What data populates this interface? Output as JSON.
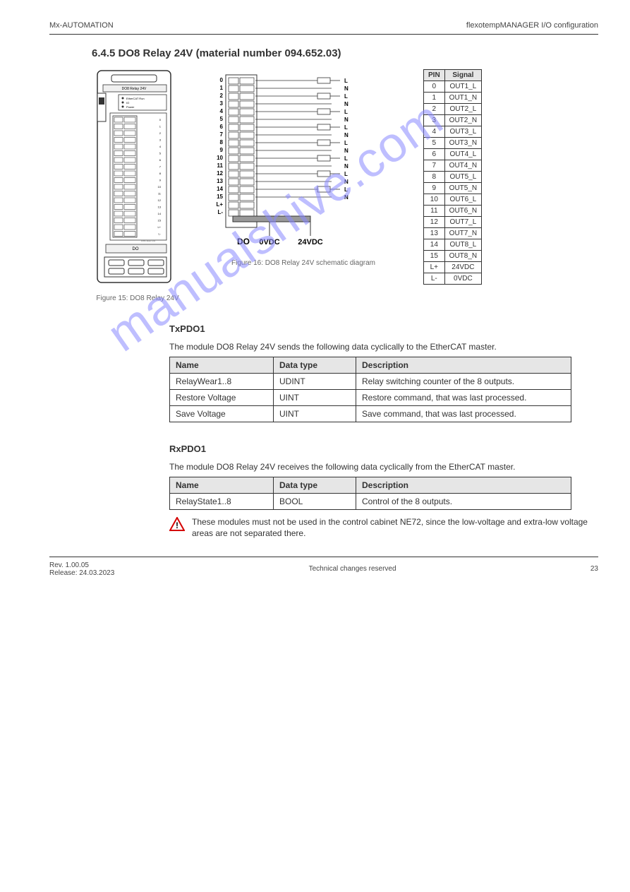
{
  "header": {
    "doc": "Mx-AUTOMATION",
    "section": "flexotempMANAGER I/O configuration"
  },
  "title": "6.4.5 DO8 Relay 24V (material number 094.652.03)",
  "figure_caption": "Figure 15: DO8 Relay 24V",
  "diagram_caption": "Figure 16: DO8 Relay 24V schematic diagram",
  "pin_table": {
    "headers": [
      "PIN",
      "Signal"
    ],
    "rows": [
      [
        "0",
        "OUT1_L"
      ],
      [
        "1",
        "OUT1_N"
      ],
      [
        "2",
        "OUT2_L"
      ],
      [
        "3",
        "OUT2_N"
      ],
      [
        "4",
        "OUT3_L"
      ],
      [
        "5",
        "OUT3_N"
      ],
      [
        "6",
        "OUT4_L"
      ],
      [
        "7",
        "OUT4_N"
      ],
      [
        "8",
        "OUT5_L"
      ],
      [
        "9",
        "OUT5_N"
      ],
      [
        "10",
        "OUT6_L"
      ],
      [
        "11",
        "OUT6_N"
      ],
      [
        "12",
        "OUT7_L"
      ],
      [
        "13",
        "OUT7_N"
      ],
      [
        "14",
        "OUT8_L"
      ],
      [
        "15",
        "OUT8_N"
      ],
      [
        "L+",
        "24VDC"
      ],
      [
        "L-",
        "0VDC"
      ]
    ]
  },
  "diagram_labels": {
    "DO": "DO",
    "v0": "0VDC",
    "v24": "24VDC"
  },
  "module_face": {
    "title": "DO8 Relay 24V",
    "leds": [
      "EtherCAT Run",
      "IO",
      "Power"
    ],
    "footer_label": "DO",
    "part": "094.652.03"
  },
  "tx": {
    "head": "TxPDO1",
    "para": "The module DO8 Relay 24V sends the following data cyclically to the EtherCAT master.",
    "headers": [
      "Name",
      "Data type",
      "Description"
    ],
    "rows": [
      [
        "RelayWear1..8",
        "UDINT",
        "Relay switching counter of the 8 outputs."
      ],
      [
        "Restore Voltage",
        "UINT",
        "Restore command, that was last processed."
      ],
      [
        "Save Voltage",
        "UINT",
        "Save command, that was last processed."
      ]
    ]
  },
  "rx": {
    "head": "RxPDO1",
    "para": "The module DO8 Relay 24V receives the following data cyclically from the EtherCAT master.",
    "headers": [
      "Name",
      "Data type",
      "Description"
    ],
    "rows": [
      [
        "RelayState1..8",
        "BOOL",
        "Control of the 8 outputs."
      ]
    ]
  },
  "warning": "These modules must not be used in the control cabinet NE72, since the low-voltage and extra-low voltage areas are not separated there.",
  "footer": {
    "rev": "Rev. 1.00.05",
    "date": "Release: 24.03.2023",
    "tr": "Technical changes reserved",
    "page": "23"
  },
  "colors": {
    "wm": "#8a8aff",
    "grid_bg": "#e6e6e6",
    "stroke": "#333333"
  }
}
